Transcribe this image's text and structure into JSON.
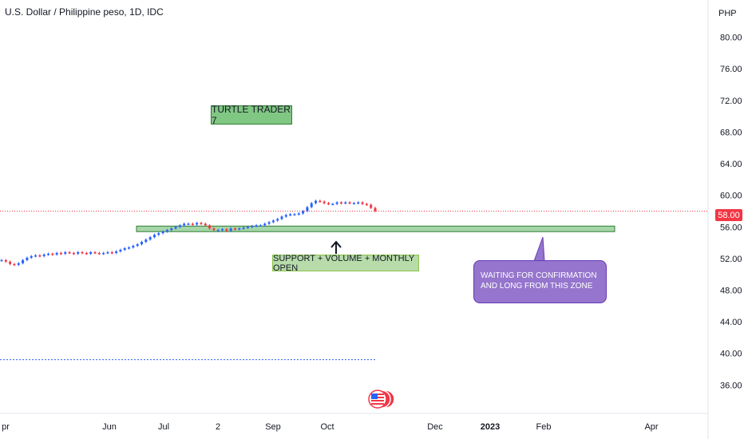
{
  "header": {
    "title": "U.S. Dollar / Philippine peso, 1D, IDC"
  },
  "currency": "PHP",
  "last_price_label": "58.00",
  "annotations": {
    "turtle": "TURTLE TRADER 7",
    "support": "SUPPORT + VOLUME + MONTHLY OPEN",
    "callout": "WAITING FOR CONFIRMATION AND LONG FROM THIS ZONE"
  },
  "colors": {
    "up": "#2962ff",
    "down": "#f23645",
    "support_zone": "#a5d6a7",
    "callout": "#9575cd",
    "price_line": "#f23645"
  },
  "chart_data": {
    "type": "line",
    "title": "U.S. Dollar / Philippine peso, 1D, IDC",
    "x_ticks": [
      "pr",
      "Jun",
      "Jul",
      "2",
      "Sep",
      "Oct",
      "Dec",
      "2023",
      "Feb",
      "Apr"
    ],
    "y_ticks": [
      "80.00",
      "76.00",
      "72.00",
      "68.00",
      "64.00",
      "60.00",
      "56.00",
      "52.00",
      "48.00",
      "44.00",
      "40.00",
      "36.00"
    ],
    "ylim": [
      32.4,
      84.7
    ],
    "series": [
      {
        "values": [
          51.8,
          51.6,
          51.3,
          51.2,
          51.4,
          51.8,
          52.1,
          52.3,
          52.4,
          52.3,
          52.5,
          52.6,
          52.5,
          52.7,
          52.6,
          52.8,
          52.7,
          52.6,
          52.8,
          52.7,
          52.6,
          52.8,
          52.7,
          52.6,
          52.7,
          52.8,
          52.7,
          52.9,
          53.1,
          53.3,
          53.4,
          53.6,
          53.8,
          54.1,
          54.4,
          54.7,
          55.0,
          55.2,
          55.4,
          55.6,
          55.8,
          56.0,
          56.2,
          56.4,
          56.4,
          56.3,
          56.5,
          56.4,
          56.2,
          55.8,
          55.6,
          55.6,
          55.7,
          55.5,
          55.8,
          55.7,
          55.8,
          55.9,
          56.0,
          56.1,
          56.2,
          56.2,
          56.4,
          56.6,
          56.8,
          57.0,
          57.3,
          57.5,
          57.6,
          57.6,
          57.7,
          58.0,
          58.5,
          59.0,
          59.3,
          59.2,
          59.0,
          58.9,
          58.9,
          59.1,
          59.0,
          59.1,
          59.0,
          59.0,
          59.1,
          58.9,
          58.8,
          58.4,
          58.0
        ]
      }
    ],
    "last_price": 58.0,
    "support_zone": [
      55.4,
      56.1
    ],
    "lower_level": 39.2,
    "grid": false,
    "legend": "none"
  }
}
